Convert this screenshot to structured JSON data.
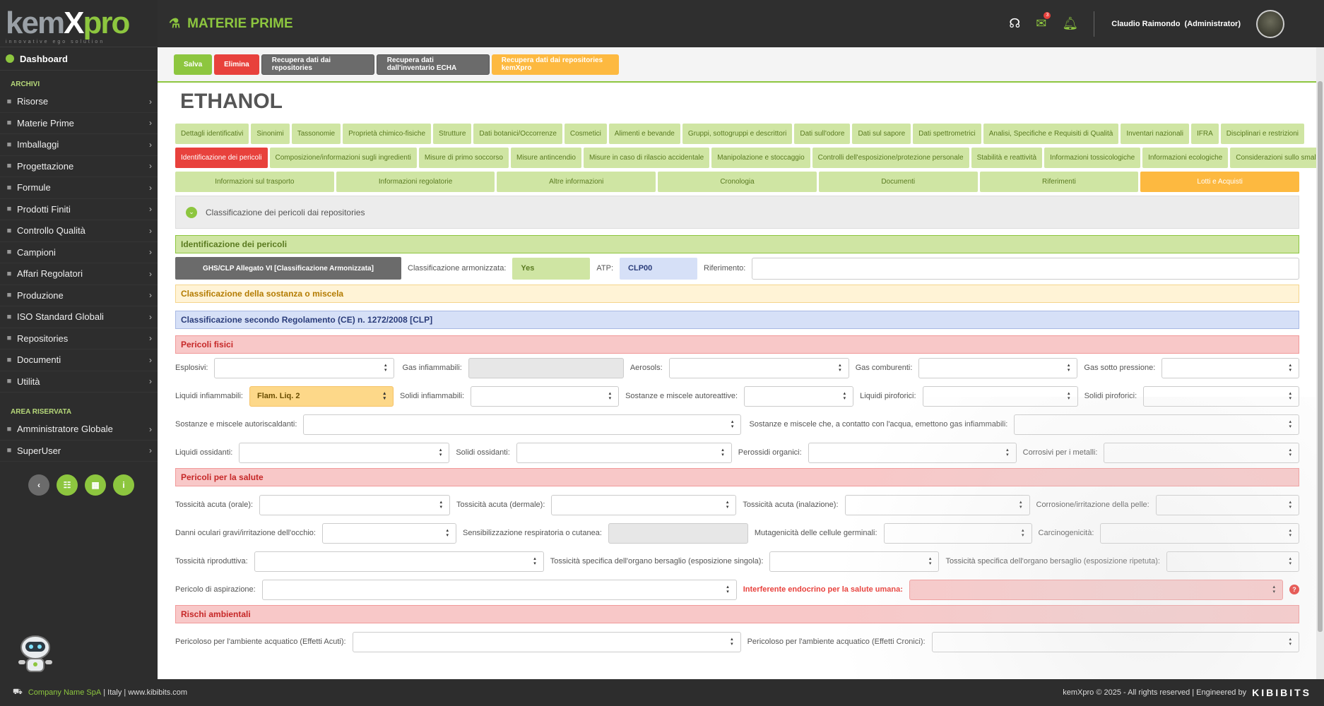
{
  "logo": {
    "k": "kem",
    "x": "X",
    "p": "pro",
    "tagline": "innovative ego solution"
  },
  "sidebar": {
    "dashboard": "Dashboard",
    "section_archivi": "ARCHIVI",
    "items": [
      {
        "label": "Risorse",
        "icon": "resources-icon"
      },
      {
        "label": "Materie Prime",
        "icon": "raw-materials-icon"
      },
      {
        "label": "Imballaggi",
        "icon": "packaging-icon"
      },
      {
        "label": "Progettazione",
        "icon": "design-icon"
      },
      {
        "label": "Formule",
        "icon": "formula-icon"
      },
      {
        "label": "Prodotti Finiti",
        "icon": "products-icon"
      },
      {
        "label": "Controllo Qualità",
        "icon": "quality-icon"
      },
      {
        "label": "Campioni",
        "icon": "samples-icon"
      },
      {
        "label": "Affari Regolatori",
        "icon": "regulatory-icon"
      },
      {
        "label": "Produzione",
        "icon": "production-icon"
      },
      {
        "label": "ISO Standard Globali",
        "icon": "iso-icon"
      },
      {
        "label": "Repositories",
        "icon": "repositories-icon"
      },
      {
        "label": "Documenti",
        "icon": "documents-icon"
      },
      {
        "label": "Utilità",
        "icon": "wrench-icon"
      }
    ],
    "section_reserved": "AREA RISERVATA",
    "reserved_items": [
      {
        "label": "Amministratore Globale",
        "icon": "code-icon"
      },
      {
        "label": "SuperUser",
        "icon": "lock-icon"
      }
    ],
    "round_buttons": [
      {
        "icon": "back-icon",
        "glyph": "‹",
        "color": "#6b6b6b"
      },
      {
        "icon": "list-icon",
        "glyph": "☷",
        "color": "#8dc63f"
      },
      {
        "icon": "calendar-icon",
        "glyph": "▦",
        "color": "#8dc63f"
      },
      {
        "icon": "info-icon",
        "glyph": "i",
        "color": "#8dc63f"
      }
    ]
  },
  "header": {
    "title": "MATERIE PRIME",
    "mail_count": "3",
    "user_name": "Claudio Raimondo",
    "user_role": "(Administrator)"
  },
  "actions": {
    "save": "Salva",
    "delete": "Elimina",
    "fetch_repos": "Recupera dati dai repositories",
    "fetch_echa": "Recupera dati dall'inventario ECHA",
    "fetch_kemxpro": "Recupera dati dai repositories kemXpro"
  },
  "substance_name": "ETHANOL",
  "tabs_row1": [
    "Dettagli identificativi",
    "Sinonimi",
    "Tassonomie",
    "Proprietà chimico-fisiche",
    "Strutture",
    "Dati botanici/Occorrenze",
    "Cosmetici",
    "Alimenti e bevande",
    "Gruppi, sottogruppi e descrittori",
    "Dati sull'odore",
    "Dati sul sapore",
    "Dati spettrometrici",
    "Analisi, Specifiche e Requisiti di Qualità",
    "Inventari nazionali",
    "IFRA",
    "Disciplinari e restrizioni"
  ],
  "tabs_row2": [
    "Identificazione dei pericoli",
    "Composizione/informazioni sugli ingredienti",
    "Misure di primo soccorso",
    "Misure antincendio",
    "Misure in caso di rilascio accidentale",
    "Manipolazione e stoccaggio",
    "Controlli dell'esposizione/protezione personale",
    "Stabilità e reattività",
    "Informazioni tossicologiche",
    "Informazioni ecologiche",
    "Considerazioni sullo smaltimento"
  ],
  "tabs_row3": [
    "Informazioni sul trasporto",
    "Informazioni regolatorie",
    "Altre informazioni",
    "Cronologia",
    "Documenti",
    "Riferimenti",
    "Lotti e Acquisti"
  ],
  "collapse_label": "Classificazione dei pericoli dai repositories",
  "sections": {
    "identification": "Identificazione dei pericoli",
    "ghs_button": "GHS/CLP Allegato VI [Classificazione Armonizzata]",
    "harmonized_label": "Classificazione armonizzata:",
    "harmonized_value": "Yes",
    "atp_label": "ATP:",
    "atp_value": "CLP00",
    "reference_label": "Riferimento:",
    "substance_class": "Classificazione della sostanza o miscela",
    "clp": "Classificazione secondo Regolamento (CE) n. 1272/2008 [CLP]",
    "physical": "Pericoli fisici",
    "health": "Pericoli per la salute",
    "environment": "Rischi ambientali"
  },
  "physical_fields": {
    "esplosivi": "Esplosivi:",
    "gas_infiammabili": "Gas infiammabili:",
    "aerosols": "Aerosols:",
    "gas_comburenti": "Gas comburenti:",
    "gas_pressione": "Gas sotto pressione:",
    "liquidi_infiammabili": "Liquidi infiammabili:",
    "liquidi_infiammabili_value": "Flam. Liq. 2",
    "solidi_infiammabili": "Solidi infiammabili:",
    "autoreattive": "Sostanze e miscele autoreattive:",
    "liquidi_piroforici": "Liquidi piroforici:",
    "solidi_piroforici": "Solidi piroforici:",
    "autoriscaldanti": "Sostanze e miscele autoriscaldanti:",
    "acqua_gas": "Sostanze e miscele che, a contatto con l'acqua, emettono gas infiammabili:",
    "liquidi_ossidanti": "Liquidi ossidanti:",
    "solidi_ossidanti": "Solidi ossidanti:",
    "perossidi": "Perossidi organici:",
    "corrosivi": "Corrosivi per i metalli:"
  },
  "health_fields": {
    "orale": "Tossicità acuta (orale):",
    "dermale": "Tossicità acuta (dermale):",
    "inalazione": "Tossicità acuta (inalazione):",
    "pelle": "Corrosione/irritazione della pelle:",
    "occhio": "Danni oculari gravi/irritazione dell'occhio:",
    "sensibilizzazione": "Sensibilizzazione respiratoria o cutanea:",
    "mutagenicita": "Mutagenicità delle cellule germinali:",
    "cancerogenicita": "Carcinogenicità:",
    "riproduttiva": "Tossicità riproduttiva:",
    "singola": "Tossicità specifica dell'organo bersaglio (esposizione singola):",
    "ripetuta": "Tossicità specifica dell'organo bersaglio (esposizione ripetuta):",
    "aspirazione": "Pericolo di aspirazione:",
    "endocrino": "Interferente endocrino per la salute umana:",
    "help": "?"
  },
  "env_fields": {
    "acuti": "Pericoloso per l'ambiente acquatico  (Effetti Acuti):",
    "cronici": "Pericoloso per l'ambiente acquatico  (Effetti Cronici):"
  },
  "footer": {
    "company": "Company Name SpA",
    "country": "| Italy |",
    "site": "www.kibibits.com",
    "rights": "kemXpro © 2025 - All rights reserved | Engineered by",
    "brand": "KIBIBITS"
  },
  "colors": {
    "accent": "#8dc63f",
    "danger": "#e8413c",
    "warning": "#fdb940"
  }
}
